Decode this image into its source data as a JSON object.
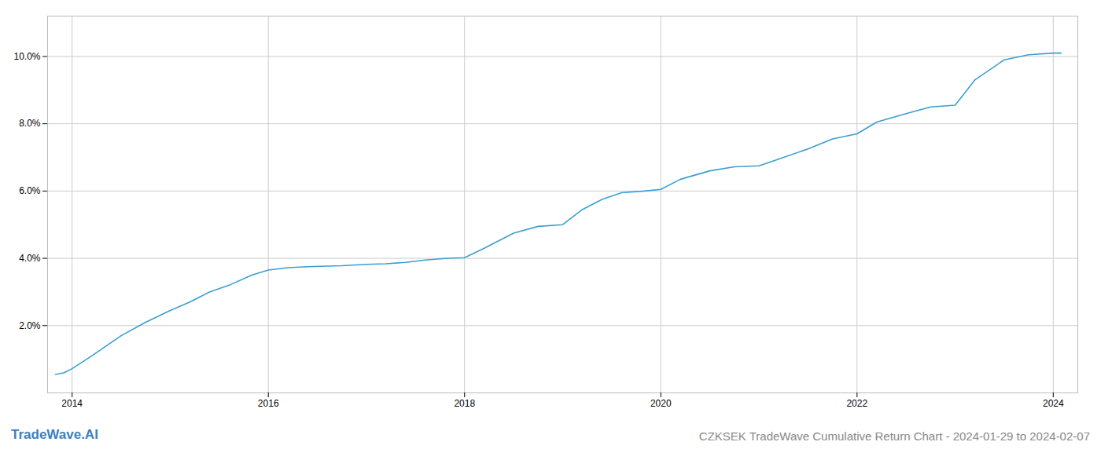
{
  "chart_data": {
    "type": "line",
    "title": "CZKSEK TradeWave Cumulative Return Chart - 2024-01-29 to 2024-02-07",
    "annotations": [
      "TradeWave.AI"
    ],
    "x": [
      2013.83,
      2013.92,
      2014.0,
      2014.2,
      2014.5,
      2014.75,
      2015.0,
      2015.2,
      2015.4,
      2015.6,
      2015.83,
      2016.0,
      2016.2,
      2016.4,
      2016.6,
      2016.75,
      2017.0,
      2017.2,
      2017.4,
      2017.6,
      2017.83,
      2018.0,
      2018.2,
      2018.5,
      2018.75,
      2019.0,
      2019.2,
      2019.4,
      2019.6,
      2019.83,
      2020.0,
      2020.2,
      2020.5,
      2020.75,
      2021.0,
      2021.2,
      2021.5,
      2021.75,
      2022.0,
      2022.2,
      2022.5,
      2022.75,
      2023.0,
      2023.2,
      2023.5,
      2023.75,
      2024.0,
      2024.08
    ],
    "values": [
      0.55,
      0.6,
      0.72,
      1.1,
      1.7,
      2.1,
      2.45,
      2.7,
      3.0,
      3.2,
      3.5,
      3.65,
      3.72,
      3.75,
      3.77,
      3.78,
      3.82,
      3.84,
      3.88,
      3.95,
      4.0,
      4.02,
      4.3,
      4.75,
      4.95,
      5.0,
      5.45,
      5.75,
      5.95,
      6.0,
      6.05,
      6.35,
      6.6,
      6.72,
      6.75,
      6.95,
      7.25,
      7.55,
      7.7,
      8.05,
      8.3,
      8.5,
      8.55,
      9.3,
      9.9,
      10.05,
      10.1,
      10.1
    ],
    "color": "#3a9fd1",
    "xlim": [
      2013.75,
      2024.25
    ],
    "ylim": [
      0.0,
      11.2
    ],
    "xticks": [
      2014,
      2016,
      2018,
      2020,
      2022,
      2024
    ],
    "yticks": [
      {
        "value": 2.0,
        "label": "2.0%"
      },
      {
        "value": 4.0,
        "label": "4.0%"
      },
      {
        "value": 6.0,
        "label": "6.0%"
      },
      {
        "value": 8.0,
        "label": "8.0%"
      },
      {
        "value": 10.0,
        "label": "10.0%"
      }
    ],
    "grid": true
  }
}
